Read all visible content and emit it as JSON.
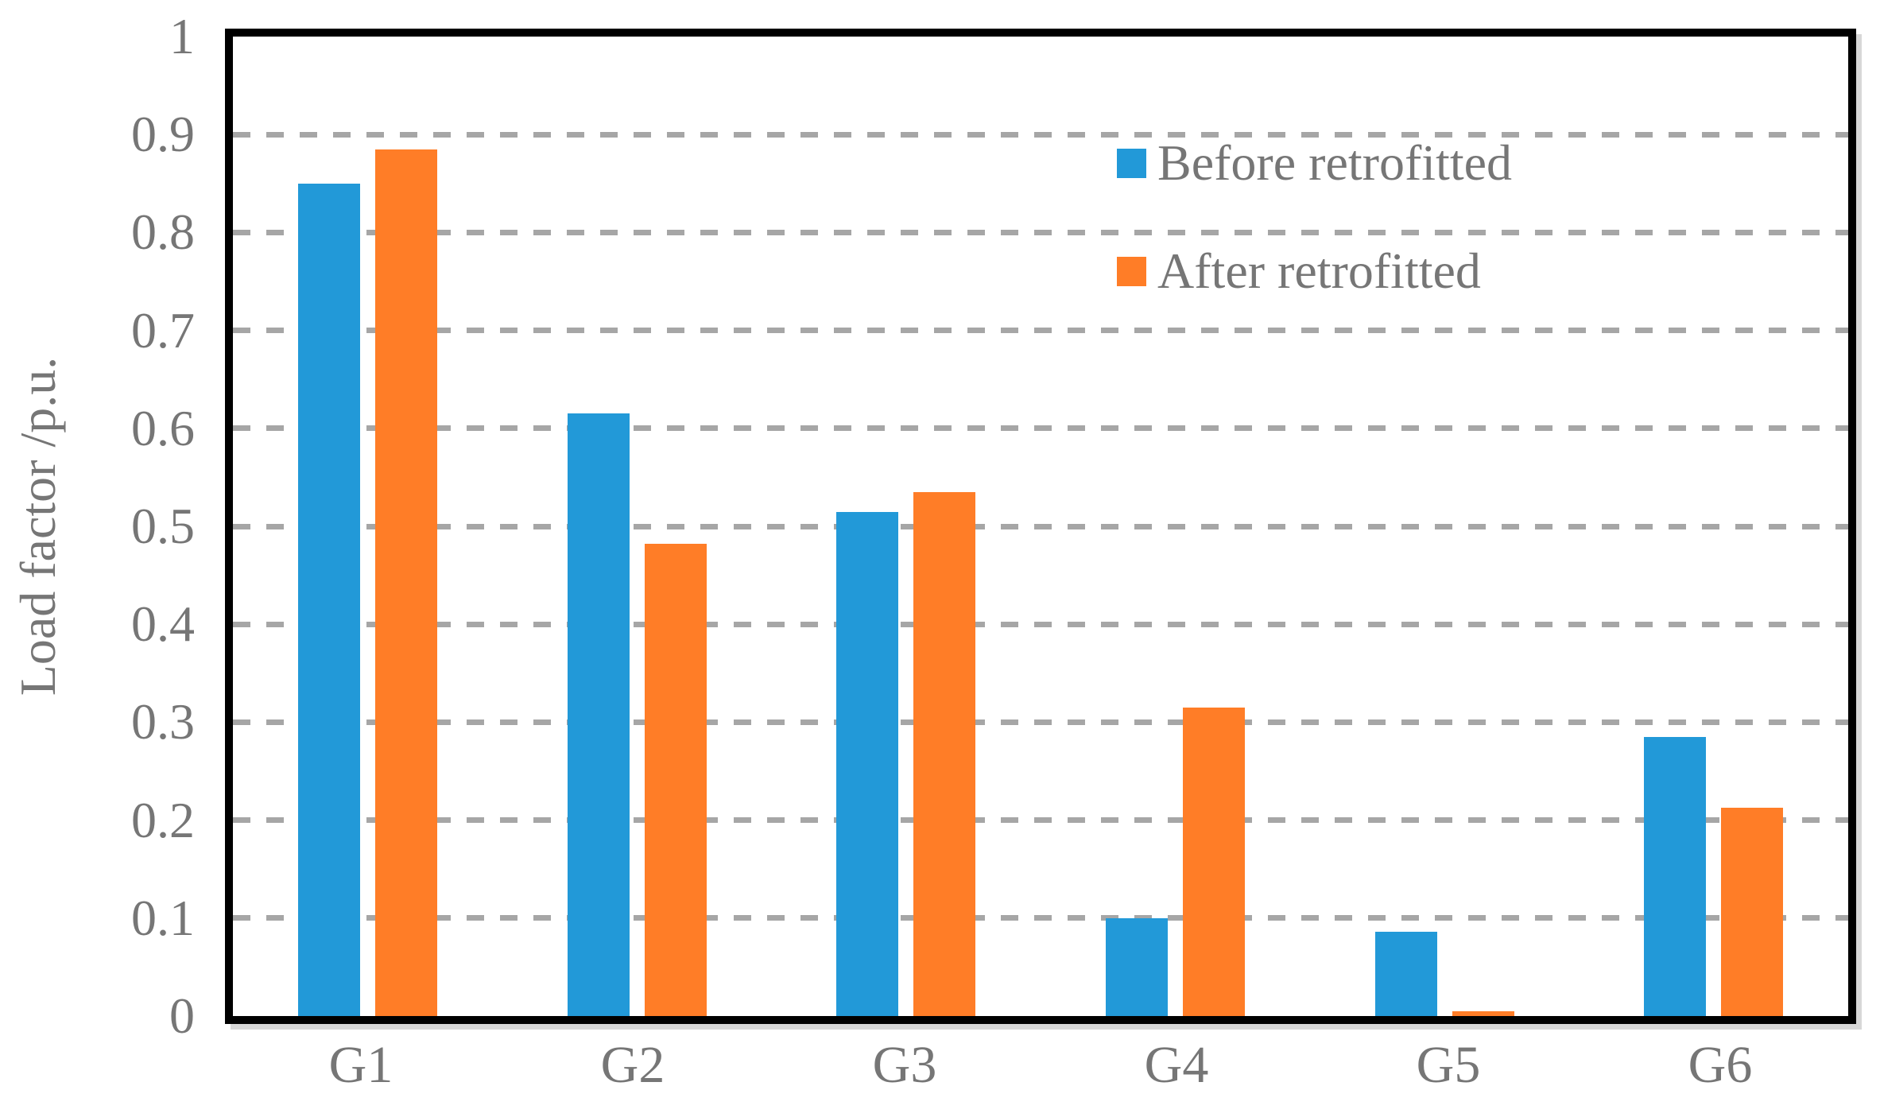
{
  "chart_data": {
    "type": "bar",
    "title": "",
    "categories": [
      "G1",
      "G2",
      "G3",
      "G4",
      "G5",
      "G6"
    ],
    "series": [
      {
        "name": "Before retrofitted",
        "color": "#2299D8",
        "values": [
          0.85,
          0.615,
          0.515,
          0.1,
          0.086,
          0.285
        ]
      },
      {
        "name": "After retrofitted",
        "color": "#FF7D27",
        "values": [
          0.885,
          0.482,
          0.535,
          0.315,
          0.005,
          0.213
        ]
      }
    ],
    "xlabel": "",
    "ylabel": "Load factor /p.u.",
    "ylim": [
      0,
      1
    ],
    "y_tick_labels": [
      "0",
      "0.1",
      "0.2",
      "0.3",
      "0.4",
      "0.5",
      "0.6",
      "0.7",
      "0.8",
      "0.9",
      "1"
    ],
    "grid": "horizontal dashed gridlines at every 0.1",
    "legend_position": "upper right inside plot",
    "styles": {
      "gridline_color": "#A6A6A6",
      "axis_border_color": "#000000",
      "text_color": "#767676",
      "background": "#FFFFFF"
    }
  }
}
